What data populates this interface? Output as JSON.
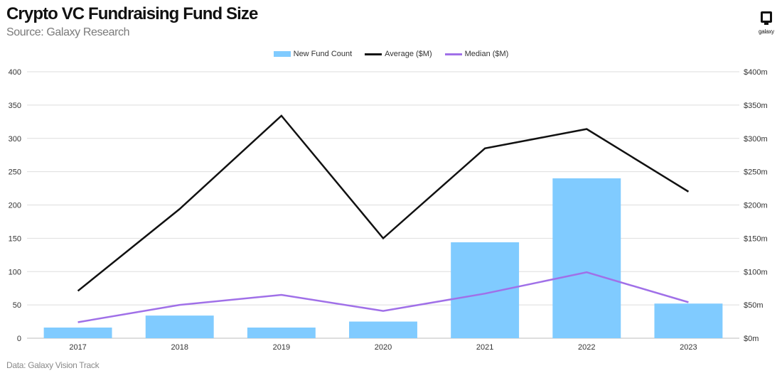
{
  "header": {
    "title": "Crypto VC Fundraising Fund Size",
    "subtitle": "Source: Galaxy Research"
  },
  "footer": {
    "note": "Data: Galaxy Vision Track"
  },
  "logo": {
    "text": "galaxy",
    "icon": "galaxy-logo-icon"
  },
  "colors": {
    "bar": "#80CBFF",
    "average": "#111111",
    "median": "#A070E8"
  },
  "chart_data": {
    "type": "bar",
    "categories": [
      "2017",
      "2018",
      "2019",
      "2020",
      "2021",
      "2022",
      "2023"
    ],
    "series": [
      {
        "name": "New Fund Count",
        "type": "bar",
        "axis": "left",
        "values": [
          16,
          34,
          16,
          25,
          144,
          240,
          52
        ]
      },
      {
        "name": "Average ($M)",
        "type": "line",
        "axis": "right",
        "values": [
          71,
          194,
          334,
          150,
          285,
          314,
          220
        ]
      },
      {
        "name": "Median ($M)",
        "type": "line",
        "axis": "right",
        "values": [
          24,
          50,
          65,
          41,
          67,
          99,
          54
        ]
      }
    ],
    "y_left": {
      "min": 0,
      "max": 400,
      "ticks": [
        "0",
        "50",
        "100",
        "150",
        "200",
        "250",
        "300",
        "350",
        "400"
      ]
    },
    "y_right": {
      "min": 0,
      "max": 400,
      "ticks": [
        "$0m",
        "$50m",
        "$100m",
        "$150m",
        "$200m",
        "$250m",
        "$300m",
        "$350m",
        "$400m"
      ]
    },
    "grid": true,
    "legend": "top-center"
  }
}
